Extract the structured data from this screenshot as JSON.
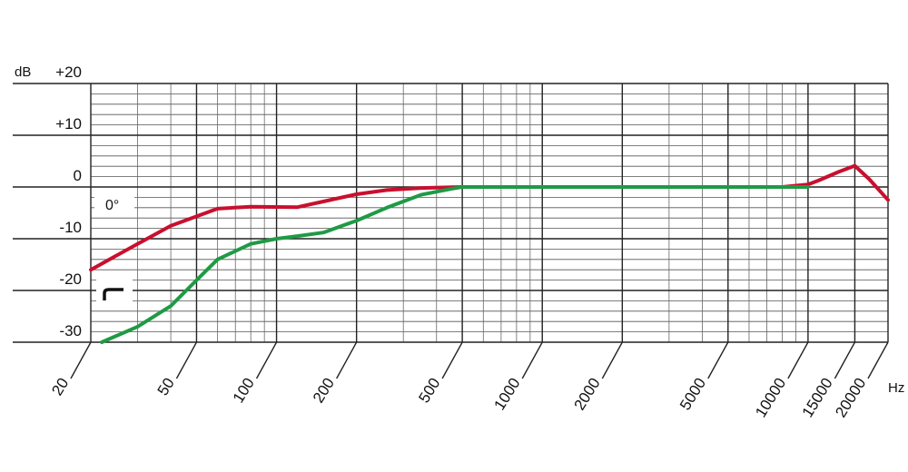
{
  "chart_data": {
    "type": "line",
    "title": "",
    "xlabel": "",
    "ylabel": "",
    "y_unit": "dB",
    "x_unit": "Hz",
    "x_scale": "log",
    "xlim": [
      20,
      20000
    ],
    "ylim": [
      -30,
      20
    ],
    "grid": true,
    "x_ticks": [
      {
        "value": 20,
        "label": "20"
      },
      {
        "value": 50,
        "label": "50"
      },
      {
        "value": 100,
        "label": "100"
      },
      {
        "value": 200,
        "label": "200"
      },
      {
        "value": 500,
        "label": "500"
      },
      {
        "value": 1000,
        "label": "1000"
      },
      {
        "value": 2000,
        "label": "2000"
      },
      {
        "value": 5000,
        "label": "5000"
      },
      {
        "value": 10000,
        "label": "10000"
      },
      {
        "value": 15000,
        "label": "15000"
      },
      {
        "value": 20000,
        "label": "20000"
      }
    ],
    "y_ticks": [
      {
        "value": 20,
        "label": "+20"
      },
      {
        "value": 10,
        "label": "+10"
      },
      {
        "value": 0,
        "label": "0"
      },
      {
        "value": -10,
        "label": "-10"
      },
      {
        "value": -20,
        "label": "-20"
      },
      {
        "value": -30,
        "label": "-30"
      }
    ],
    "annotations": [
      {
        "text": "0°",
        "near_series": 0
      },
      {
        "symbol": "low-cut-filter-icon",
        "near_series": 1
      }
    ],
    "series": [
      {
        "color": "#c8102e",
        "x": [
          20,
          30,
          40,
          60,
          80,
          120,
          150,
          200,
          260,
          350,
          500,
          1000,
          2000,
          5000,
          8000,
          10000,
          11000,
          13000,
          15000,
          17000,
          20000
        ],
        "y": [
          -16,
          -11,
          -7.5,
          -4.2,
          -3.8,
          -3.9,
          -2.8,
          -1.4,
          -0.6,
          -0.2,
          0,
          0,
          0,
          0,
          0,
          0.5,
          1.3,
          2.9,
          4.1,
          1.5,
          -2.5
        ]
      },
      {
        "color": "#1f9a45",
        "x": [
          22,
          30,
          40,
          50,
          60,
          80,
          100,
          120,
          150,
          200,
          260,
          350,
          450,
          500,
          600,
          1000,
          2000,
          5000,
          10000
        ],
        "y": [
          -30,
          -27,
          -23,
          -18,
          -14,
          -11,
          -10,
          -9.5,
          -8.8,
          -6.5,
          -4,
          -1.5,
          -0.4,
          0,
          0,
          0,
          0,
          0,
          0
        ]
      }
    ]
  }
}
